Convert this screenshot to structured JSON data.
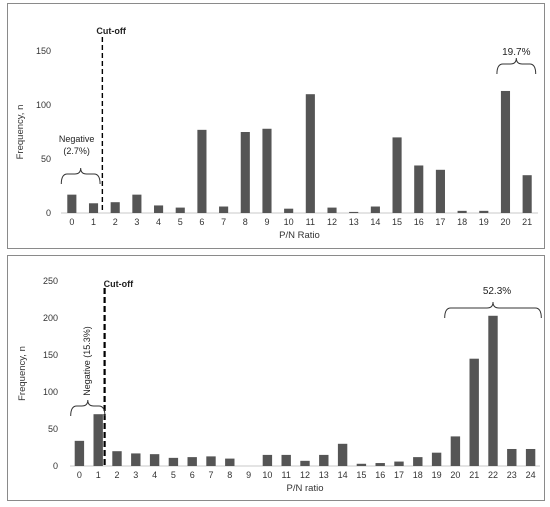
{
  "chart_data": [
    {
      "type": "bar",
      "x": [
        0,
        1,
        2,
        3,
        4,
        5,
        6,
        7,
        8,
        9,
        10,
        11,
        12,
        13,
        14,
        15,
        16,
        17,
        18,
        19,
        20,
        21
      ],
      "values": [
        17,
        9,
        10,
        17,
        7,
        5,
        77,
        6,
        75,
        78,
        4,
        110,
        5,
        1,
        6,
        70,
        44,
        40,
        2,
        2,
        113,
        35
      ],
      "xlabel": "P/N Ratio",
      "ylabel": "Frequency, n",
      "ylim": [
        0,
        150
      ],
      "yticks": [
        0,
        50,
        100,
        150
      ],
      "cutoff_label": "Cut-off",
      "negative_label": "Negative",
      "negative_pct": "(2.7%)",
      "positive_pct": "19.7%",
      "color": "#555555"
    },
    {
      "type": "bar",
      "x": [
        0,
        1,
        2,
        3,
        4,
        5,
        6,
        7,
        8,
        9,
        10,
        11,
        12,
        13,
        14,
        15,
        16,
        17,
        18,
        19,
        20,
        21,
        22,
        23,
        24
      ],
      "values": [
        34,
        70,
        20,
        17,
        16,
        11,
        12,
        13,
        10,
        0,
        15,
        15,
        7,
        15,
        30,
        3,
        4,
        6,
        12,
        18,
        40,
        145,
        203,
        23,
        23
      ],
      "xlabel": "P/N ratio",
      "ylabel": "Frequency, n",
      "ylim": [
        0,
        250
      ],
      "yticks": [
        0,
        50,
        100,
        150,
        200,
        250
      ],
      "cutoff_label": "Cut-off",
      "negative_label": "Negative (15.3%)",
      "positive_pct": "52.3%",
      "color": "#555555"
    }
  ]
}
